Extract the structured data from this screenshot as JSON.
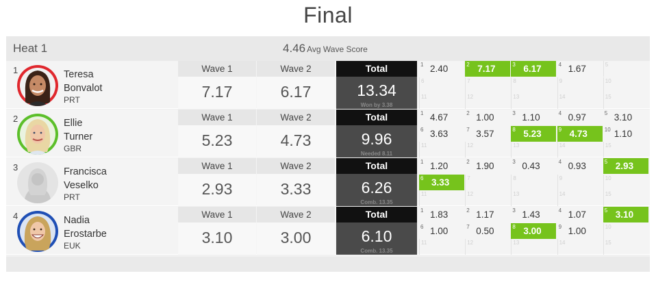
{
  "title": "Final",
  "heat": {
    "name": "Heat 1",
    "avg_score": "4.46",
    "avg_label": "Avg Wave Score",
    "wave1_label": "Wave 1",
    "wave2_label": "Wave 2",
    "total_label": "Total",
    "athletes": [
      {
        "seed": "1",
        "first": "Teresa",
        "last": "Bonvalot",
        "country": "PRT",
        "wave1": "7.17",
        "wave2": "6.17",
        "total": "13.34",
        "note": "Won by 3.38",
        "avatar_ring": "#e0282e",
        "avatar_type": "photo-dark",
        "waves": [
          {
            "n": "1",
            "v": "2.40",
            "hi": false
          },
          {
            "n": "2",
            "v": "7.17",
            "hi": true
          },
          {
            "n": "3",
            "v": "6.17",
            "hi": true
          },
          {
            "n": "4",
            "v": "1.67",
            "hi": false
          }
        ]
      },
      {
        "seed": "2",
        "first": "Ellie",
        "last": "Turner",
        "country": "GBR",
        "wave1": "5.23",
        "wave2": "4.73",
        "total": "9.96",
        "note": "Needed 8.11",
        "avatar_ring": "#5cbf2a",
        "avatar_type": "photo-blonde",
        "waves": [
          {
            "n": "1",
            "v": "4.67",
            "hi": false
          },
          {
            "n": "2",
            "v": "1.00",
            "hi": false
          },
          {
            "n": "3",
            "v": "1.10",
            "hi": false
          },
          {
            "n": "4",
            "v": "0.97",
            "hi": false
          },
          {
            "n": "5",
            "v": "3.10",
            "hi": false
          },
          {
            "n": "6",
            "v": "3.63",
            "hi": false
          },
          {
            "n": "7",
            "v": "3.57",
            "hi": false
          },
          {
            "n": "8",
            "v": "5.23",
            "hi": true
          },
          {
            "n": "9",
            "v": "4.73",
            "hi": true
          },
          {
            "n": "10",
            "v": "1.10",
            "hi": false
          }
        ]
      },
      {
        "seed": "3",
        "first": "Francisca",
        "last": "Veselko",
        "country": "PRT",
        "wave1": "2.93",
        "wave2": "3.33",
        "total": "6.26",
        "note": "Comb. 13.35",
        "avatar_ring": "#e4e4e4",
        "avatar_type": "placeholder",
        "waves": [
          {
            "n": "1",
            "v": "1.20",
            "hi": false
          },
          {
            "n": "2",
            "v": "1.90",
            "hi": false
          },
          {
            "n": "3",
            "v": "0.43",
            "hi": false
          },
          {
            "n": "4",
            "v": "0.93",
            "hi": false
          },
          {
            "n": "5",
            "v": "2.93",
            "hi": true
          },
          {
            "n": "6",
            "v": "3.33",
            "hi": true
          }
        ]
      },
      {
        "seed": "4",
        "first": "Nadia",
        "last": "Erostarbe",
        "country": "EUK",
        "wave1": "3.10",
        "wave2": "3.00",
        "total": "6.10",
        "note": "Comb. 13.35",
        "avatar_ring": "#1f4fb5",
        "avatar_type": "photo-blonde-2",
        "waves": [
          {
            "n": "1",
            "v": "1.83",
            "hi": false
          },
          {
            "n": "2",
            "v": "1.17",
            "hi": false
          },
          {
            "n": "3",
            "v": "1.43",
            "hi": false
          },
          {
            "n": "4",
            "v": "1.07",
            "hi": false
          },
          {
            "n": "5",
            "v": "3.10",
            "hi": true
          },
          {
            "n": "6",
            "v": "1.00",
            "hi": false
          },
          {
            "n": "7",
            "v": "0.50",
            "hi": false
          },
          {
            "n": "8",
            "v": "3.00",
            "hi": true
          },
          {
            "n": "9",
            "v": "1.00",
            "hi": false
          }
        ]
      }
    ]
  }
}
